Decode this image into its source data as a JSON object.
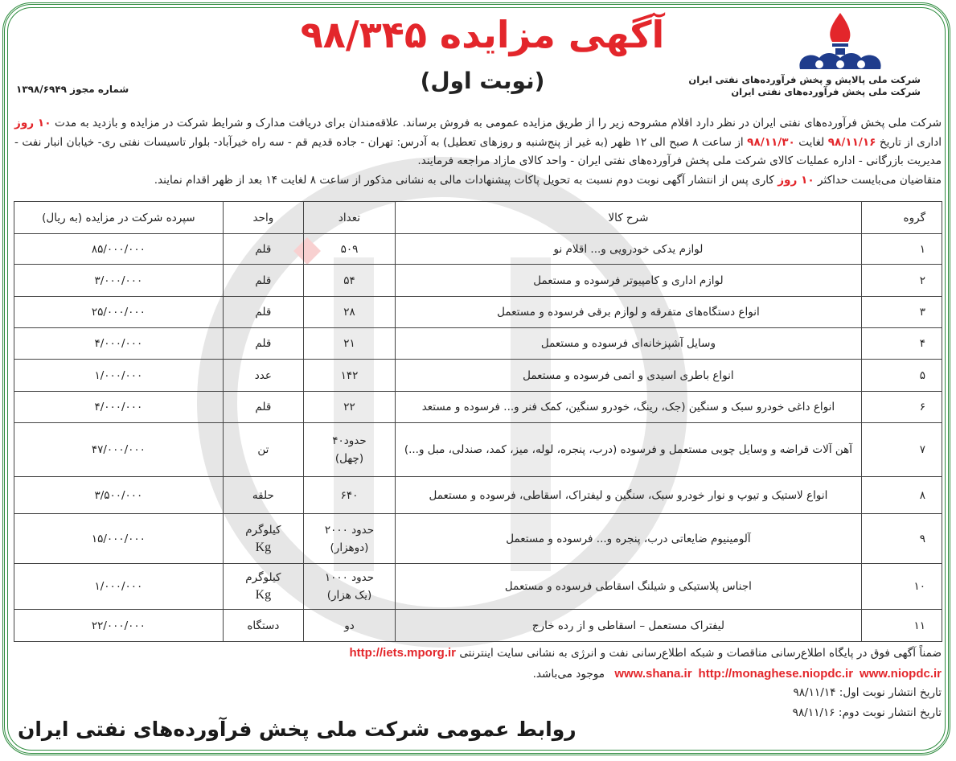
{
  "header": {
    "title": "آگهی مزایده ۹۸/۳۴۵",
    "subtitle": "(نوبت اول)",
    "license_number": "شماره مجوز ۱۳۹۸/۶۹۴۹",
    "company_line_1": "شرکت ملی پالایش و پخش فرآورده‌های نفتی ایران",
    "company_line_2": "شرکت ملی پخش فرآورده‌های نفتی ایران",
    "brand_colors": {
      "red": "#e3262b",
      "blue": "#1f3c8c",
      "green": "#2e8b3e"
    }
  },
  "intro": {
    "p1": "شرکت ملی پخش فرآورده‌های نفتی ایران در نظر دارد اقلام مشروحه زیر را از طریق مزایده عمومی به فروش برساند. علاقه‌مندان برای دریافت مدارک و شرایط شرکت در مزایده و بازدید به مدت ",
    "p1_red": "۱۰ روز",
    "p2": " اداری از تاریخ ",
    "p2_red1": "۹۸/۱۱/۱۶",
    "p3": " لغایت ",
    "p3_red2": "۹۸/۱۱/۳۰",
    "p4": " از ساعت ۸ صبح الی ۱۲ ظهر (به غیر از پنج‌شنبه و روزهای تعطیل) به آدرس: تهران - جاده قدیم قم - سه راه خیرآباد- بلوار تاسیسات نفتی ری- خیابان انبار نفت - مدیریت بازرگانی - اداره عملیات کالای شرکت ملی پخش فرآورده‌های نفتی ایران - واحد کالای مازاد مراجعه فرمایند.",
    "p5": "متقاضیان می‌بایست حداکثر ",
    "p5_red": "۱۰ روز",
    "p6": " کاری پس از انتشار آگهی نوبت دوم نسبت به تحویل پاکات پیشنهادات مالی به نشانی مذکور از ساعت ۸ لغایت ۱۴ بعد از ظهر اقدام نمایند."
  },
  "table": {
    "headers": {
      "group": "گروه",
      "description": "شرح کالا",
      "count": "تعداد",
      "unit": "واحد",
      "deposit": "سپرده شرکت در مزایده (به ریال)"
    },
    "rows": [
      {
        "group": "۱",
        "description": "لوازم یدکی خودرویی و... اقلام نو",
        "count": "۵۰۹",
        "count2": "",
        "unit": "قلم",
        "unit2": "",
        "deposit": "۸۵/۰۰۰/۰۰۰"
      },
      {
        "group": "۲",
        "description": "لوازم اداری و کامپیوتر فرسوده و مستعمل",
        "count": "۵۴",
        "count2": "",
        "unit": "قلم",
        "unit2": "",
        "deposit": "۳/۰۰۰/۰۰۰"
      },
      {
        "group": "۳",
        "description": "انواع دستگاه‌های متفرقه و لوازم برقی فرسوده و مستعمل",
        "count": "۲۸",
        "count2": "",
        "unit": "قلم",
        "unit2": "",
        "deposit": "۲۵/۰۰۰/۰۰۰"
      },
      {
        "group": "۴",
        "description": "وسایل آشپزخانه‌ای فرسوده و مستعمل",
        "count": "۲۱",
        "count2": "",
        "unit": "قلم",
        "unit2": "",
        "deposit": "۴/۰۰۰/۰۰۰"
      },
      {
        "group": "۵",
        "description": "انواع باطری اسیدی و اتمی فرسوده و مستعمل",
        "count": "۱۴۲",
        "count2": "",
        "unit": "عدد",
        "unit2": "",
        "deposit": "۱/۰۰۰/۰۰۰"
      },
      {
        "group": "۶",
        "description": "انواع داغی خودرو سبک و سنگین (جک، رینگ، خودرو سنگین، کمک فنر و... فرسوده و مستعد",
        "count": "۲۲",
        "count2": "",
        "unit": "قلم",
        "unit2": "",
        "deposit": "۴/۰۰۰/۰۰۰"
      },
      {
        "group": "۷",
        "description": "آهن آلات قراضه و وسایل چوبی مستعمل و فرسوده (درب، پنجره، لوله، میز، کمد، صندلی، مبل و...)",
        "count": "حدود۴۰",
        "count2": "(چهل)",
        "unit": "تن",
        "unit2": "",
        "deposit": "۴۷/۰۰۰/۰۰۰"
      },
      {
        "group": "۸",
        "description": "انواع لاستیک و تیوپ و نوار خودرو سبک، سنگین و لیفتراک، اسقاطی، فرسوده و مستعمل",
        "count": "۶۴۰",
        "count2": "",
        "unit": "حلقه",
        "unit2": "",
        "deposit": "۳/۵۰۰/۰۰۰"
      },
      {
        "group": "۹",
        "description": "آلومینیوم ضایعاتی درب، پنجره و... فرسوده و مستعمل",
        "count": "حدود ۲۰۰۰",
        "count2": "(دوهزار)",
        "unit": "کیلوگرم",
        "unit2": "Kg",
        "deposit": "۱۵/۰۰۰/۰۰۰"
      },
      {
        "group": "۱۰",
        "description": "اجناس پلاستیکی و شیلنگ اسقاطی فرسوده و مستعمل",
        "count": "حدود ۱۰۰۰",
        "count2": "(یک هزار)",
        "unit": "کیلوگرم",
        "unit2": "Kg",
        "deposit": "۱/۰۰۰/۰۰۰"
      },
      {
        "group": "۱۱",
        "description": "لیفتراک مستعمل – اسقاطی و از رده خارج",
        "count": "دو",
        "count2": "",
        "unit": "دستگاه",
        "unit2": "",
        "deposit": "۲۲/۰۰۰/۰۰۰"
      }
    ]
  },
  "footer": {
    "line1": "ضمناً آگهی فوق در پایگاه اطلاع‌رسانی مناقصات و شبکه اطلاع‌رسانی نفت و انرژی به نشانی سایت اینترنتی",
    "url1": "http://iets.mporg.ir",
    "url2": "www.shana.ir",
    "url3": "http://monaghese.niopdc.ir",
    "url4": "www.niopdc.ir",
    "line2_suffix": "موجود می‌باشد.",
    "date1": "تاریخ انتشار نوبت اول: ۹۸/۱۱/۱۴",
    "date2": "تاریخ انتشار نوبت دوم: ۹۸/۱۱/۱۶",
    "signature": "روابط عمومی شرکت ملی پخش فرآورده‌های نفتی ایران"
  }
}
